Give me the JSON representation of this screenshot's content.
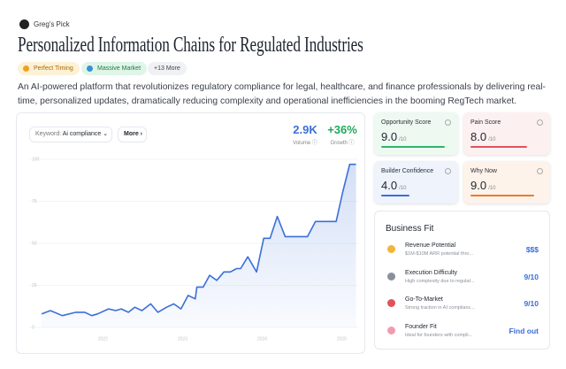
{
  "header": {
    "badge": "Greg's Pick",
    "title": "Personalized Information Chains for Regulated Industries",
    "tags": [
      "Perfect Timing",
      "Massive Market",
      "+13 More"
    ],
    "description": "An AI-powered platform that revolutionizes regulatory compliance for legal, healthcare, and finance professionals by delivering real-time, personalized updates, dramatically reducing complexity and operational inefficiencies in the booming RegTech market."
  },
  "trend": {
    "keyword_label": "Keyword:",
    "keyword": "Ai compliance",
    "more": "More",
    "volume": "2.9K",
    "volume_label": "Volume",
    "growth": "+36%",
    "growth_label": "Growth",
    "chart_data": {
      "type": "line",
      "color": "#3b6fd8",
      "x": [
        2021.23,
        2021.34,
        2021.49,
        2021.66,
        2021.77,
        2021.86,
        2021.93,
        2022.07,
        2022.16,
        2022.23,
        2022.32,
        2022.4,
        2022.49,
        2022.6,
        2022.69,
        2022.8,
        2022.89,
        2022.98,
        2023.07,
        2023.16,
        2023.18,
        2023.26,
        2023.34,
        2023.43,
        2023.52,
        2023.6,
        2023.68,
        2023.73,
        2023.82,
        2023.93,
        2024.02,
        2024.1,
        2024.19,
        2024.29,
        2024.38,
        2024.47,
        2024.57,
        2024.67,
        2024.76,
        2024.84,
        2024.93,
        2025.01,
        2025.1,
        2025.18
      ],
      "values": [
        8,
        10,
        7,
        9,
        9,
        7,
        8,
        11,
        10,
        11,
        9,
        12,
        10,
        14,
        9,
        12,
        14,
        11,
        19,
        17,
        24,
        24,
        31,
        28,
        33,
        33,
        35,
        35,
        42,
        33,
        53,
        53,
        66,
        54,
        54,
        54,
        54,
        63,
        63,
        63,
        63,
        80,
        97,
        97
      ],
      "xlim": [
        2021.2,
        2025.2
      ],
      "xticks": [
        2022,
        2023,
        2024,
        2025
      ],
      "ylim": [
        0,
        100
      ],
      "yticks": [
        0,
        25,
        50,
        75,
        100
      ],
      "grid": true
    }
  },
  "scores": [
    {
      "label": "Opportunity Score",
      "score": "9.0",
      "max": "/10",
      "color": "#2fb56a"
    },
    {
      "label": "Pain Score",
      "score": "8.0",
      "max": "/10",
      "color": "#e0525a"
    },
    {
      "label": "Builder Confidence",
      "score": "4.0",
      "max": "/10",
      "color": "#3b6fd8"
    },
    {
      "label": "Why Now",
      "score": "9.0",
      "max": "/10",
      "color": "#ec7a2c"
    }
  ],
  "business_fit": {
    "title": "Business Fit",
    "rows": [
      {
        "title": "Revenue Potential",
        "detail": "$1M-$10M ARR potential thro...",
        "value": "$$$"
      },
      {
        "title": "Execution Difficulty",
        "detail": "High complexity due to regulat...",
        "value": "9/10"
      },
      {
        "title": "Go-To-Market",
        "detail": "Strong traction in AI complianc...",
        "value": "9/10"
      },
      {
        "title": "Founder Fit",
        "detail": "Ideal for founders with compli...",
        "value": "Find out"
      }
    ]
  }
}
